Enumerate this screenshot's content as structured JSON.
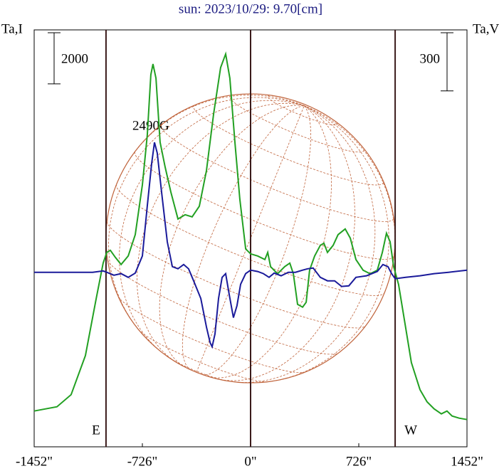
{
  "chart_data": {
    "type": "line",
    "title": "sun: 2023/10/29: 9.70[cm]",
    "ylabel": "Ta,I",
    "y2label": "Ta,V",
    "annotation": "2490G",
    "xlim": [
      -1452,
      1452
    ],
    "xticks": [
      {
        "value": -1452,
        "label": "-1452\""
      },
      {
        "value": -726,
        "label": "-726\""
      },
      {
        "value": 0,
        "label": "0\""
      },
      {
        "value": 726,
        "label": "726\""
      },
      {
        "value": 1452,
        "label": "1452\""
      }
    ],
    "ylim": [
      -1400,
      14900
    ],
    "y2lim": [
      -900,
      1250
    ],
    "limbs": [
      {
        "value": -970,
        "label": "E"
      },
      {
        "value": 970,
        "label": "W"
      }
    ],
    "scale_bars": [
      {
        "value": 2000,
        "axis": "y"
      },
      {
        "value": 300,
        "axis": "y2"
      }
    ],
    "series": [
      {
        "name": "I",
        "color": "#22a022",
        "axis": "y",
        "x": [
          -1452,
          -1299,
          -1204,
          -1108,
          -1036,
          -989,
          -965,
          -941,
          -907,
          -869,
          -821,
          -774,
          -726,
          -693,
          -669,
          -655,
          -635,
          -607,
          -573,
          -535,
          -487,
          -439,
          -392,
          -344,
          -296,
          -248,
          -201,
          -167,
          -139,
          -105,
          -72,
          -33,
          0,
          48,
          96,
          115,
          134,
          181,
          229,
          263,
          287,
          315,
          349,
          373,
          396,
          430,
          468,
          492,
          516,
          554,
          587,
          635,
          669,
          707,
          755,
          802,
          850,
          884,
          912,
          936,
          960,
          993,
          1032,
          1079,
          1137,
          1184,
          1232,
          1280,
          1318,
          1352,
          1399,
          1452
        ],
        "values": [
          0,
          167,
          639,
          2168,
          4392,
          5782,
          6199,
          6283,
          6005,
          5727,
          6060,
          6894,
          8840,
          10786,
          13149,
          13566,
          13010,
          10508,
          9535,
          8562,
          7506,
          7673,
          7589,
          8006,
          9396,
          11620,
          13427,
          13956,
          13010,
          10508,
          8284,
          6338,
          6144,
          6060,
          5921,
          6199,
          5643,
          5365,
          5643,
          5782,
          5365,
          4170,
          4059,
          4253,
          5504,
          6060,
          6477,
          6561,
          6199,
          6477,
          6894,
          7117,
          6755,
          5921,
          5504,
          5365,
          5504,
          6199,
          6950,
          6616,
          5643,
          4948,
          3558,
          1890,
          834,
          361,
          83,
          -111,
          0,
          -195,
          -278,
          -334
        ]
      },
      {
        "name": "V",
        "color": "#1a1a9a",
        "axis": "y2",
        "x": [
          -1452,
          -1204,
          -1060,
          -989,
          -965,
          -917,
          -869,
          -821,
          -774,
          -726,
          -693,
          -664,
          -645,
          -626,
          -597,
          -559,
          -525,
          -487,
          -449,
          -416,
          -382,
          -334,
          -296,
          -272,
          -258,
          -239,
          -215,
          -191,
          -167,
          -143,
          -115,
          -91,
          -67,
          -33,
          0,
          48,
          86,
          124,
          158,
          205,
          253,
          301,
          349,
          382,
          420,
          468,
          516,
          564,
          611,
          659,
          707,
          778,
          850,
          888,
          922,
          946,
          970,
          1041,
          1137,
          1232,
          1328,
          1452
        ],
        "values": [
          0,
          0,
          0,
          7,
          0,
          -15,
          -7,
          -26,
          -4,
          84,
          342,
          560,
          670,
          615,
          413,
          157,
          29,
          18,
          40,
          18,
          -44,
          -135,
          -282,
          -362,
          -384,
          -318,
          -135,
          -26,
          -7,
          -117,
          -234,
          -172,
          -62,
          -7,
          11,
          4,
          -7,
          -26,
          -4,
          -18,
          0,
          0,
          11,
          18,
          22,
          -26,
          -44,
          -44,
          -73,
          -70,
          -26,
          -18,
          4,
          40,
          29,
          -7,
          -33,
          -26,
          -18,
          -7,
          0,
          11
        ]
      }
    ]
  }
}
